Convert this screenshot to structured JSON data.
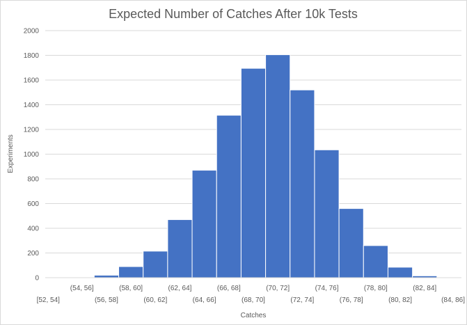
{
  "chart_data": {
    "type": "bar",
    "title": "Expected Number of Catches After 10k Tests",
    "xlabel": "Catches",
    "ylabel": "Experiments",
    "ylim": [
      0,
      2000
    ],
    "yticks": [
      0,
      200,
      400,
      600,
      800,
      1000,
      1200,
      1400,
      1600,
      1800,
      2000
    ],
    "grid": true,
    "legend": "none",
    "bar_color": "#4472c4",
    "categories": [
      "[52, 54]",
      "(54, 56]",
      "(56, 58]",
      "(58, 60]",
      "(60, 62]",
      "(62, 64]",
      "(64, 66]",
      "(66, 68]",
      "(68, 70]",
      "(70, 72]",
      "(72, 74]",
      "(74, 76]",
      "(76, 78]",
      "(78, 80]",
      "(80, 82]",
      "(82, 84]",
      "(84, 86]"
    ],
    "values": [
      2,
      5,
      20,
      90,
      215,
      470,
      870,
      1315,
      1695,
      1805,
      1520,
      1035,
      560,
      260,
      85,
      15,
      3
    ]
  }
}
